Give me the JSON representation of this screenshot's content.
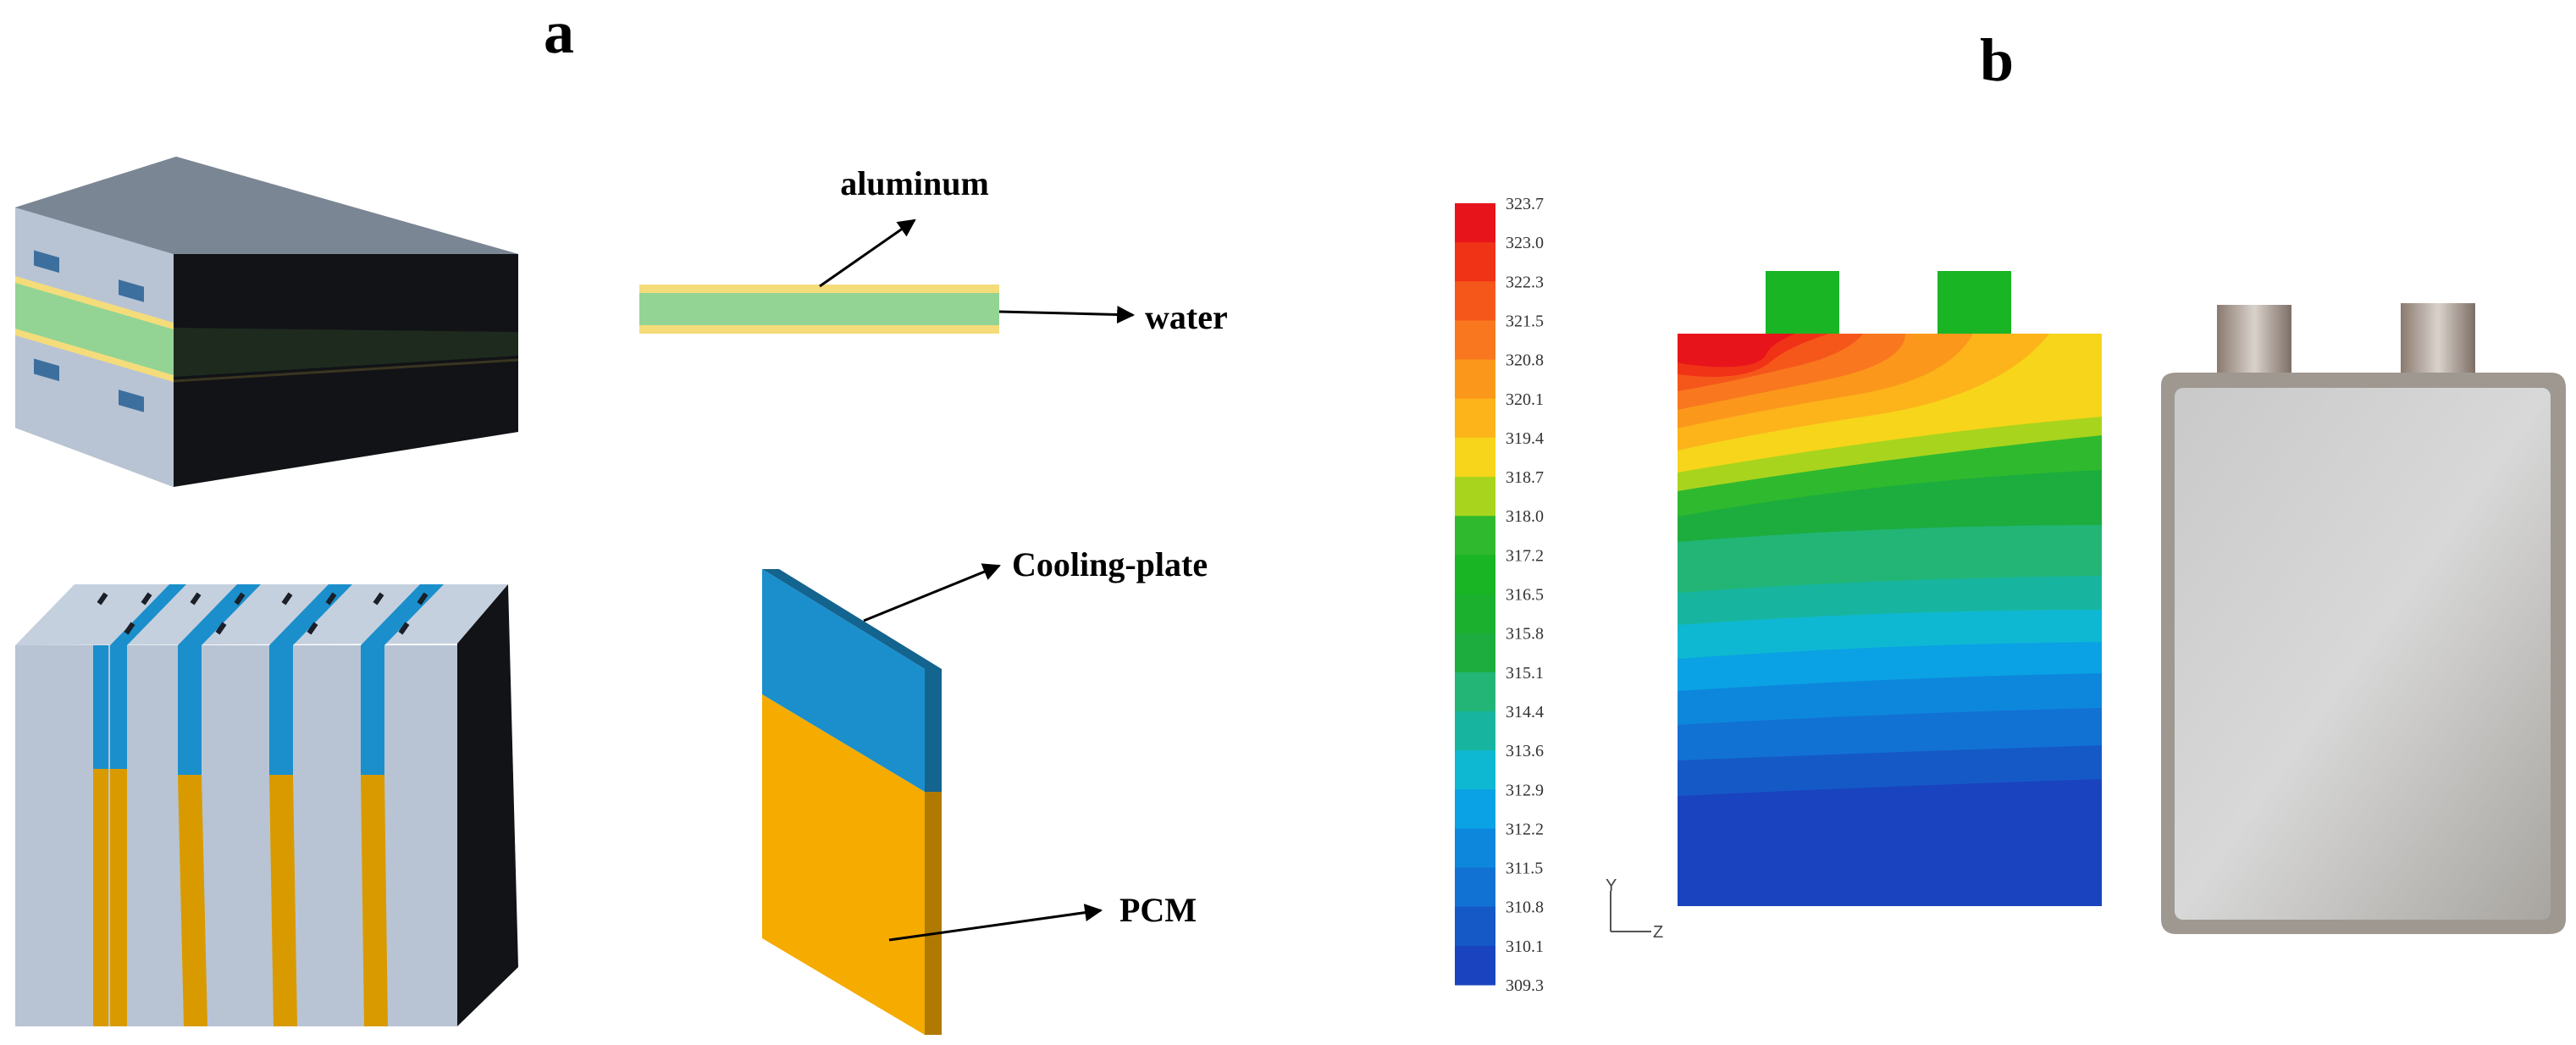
{
  "panels": {
    "a": "a",
    "b": "b"
  },
  "callouts": {
    "aluminum": "aluminum",
    "water": "water",
    "cooling_plate": "Cooling-plate",
    "pcm": "PCM"
  },
  "colorbar": {
    "ticks": [
      "323.7",
      "323.0",
      "322.3",
      "321.5",
      "320.8",
      "320.1",
      "319.4",
      "318.7",
      "318.0",
      "317.2",
      "316.5",
      "315.8",
      "315.1",
      "314.4",
      "313.6",
      "312.9",
      "312.2",
      "311.5",
      "310.8",
      "310.1",
      "309.3"
    ],
    "colors": [
      "#e8141b",
      "#f03216",
      "#f5571a",
      "#f9781f",
      "#fb981b",
      "#fcb41a",
      "#f6d51a",
      "#a9d41d",
      "#2fb92f",
      "#19b524",
      "#1bb12e",
      "#1cad3e",
      "#22b576",
      "#17b5a0",
      "#0fb8d2",
      "#0aa2e4",
      "#0d87dc",
      "#1272d4",
      "#1559c7",
      "#1a44bf"
    ]
  },
  "axis_triad": {
    "y": "Y",
    "z": "Z"
  },
  "colors": {
    "aluminum": "#f5dc7a",
    "water": "#93d494",
    "cooling_plate": "#1a8fcc",
    "pcm": "#f5ab00",
    "cell": "#b8c4d4",
    "cell_dark": "#111316"
  }
}
